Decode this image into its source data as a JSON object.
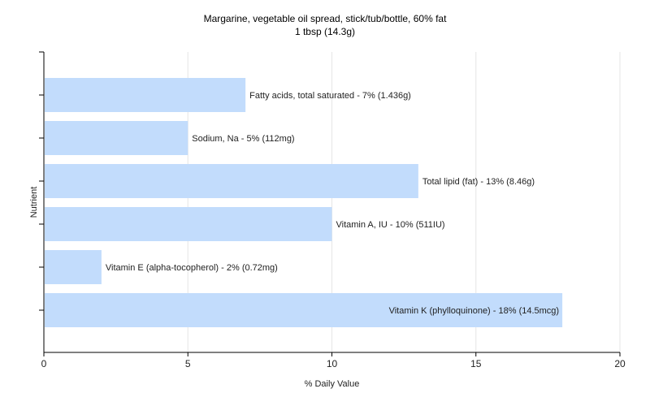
{
  "chart_data": {
    "type": "bar",
    "orientation": "horizontal",
    "title": "Margarine, vegetable oil spread, stick/tub/bottle, 60% fat",
    "subtitle": "1 tbsp (14.3g)",
    "xlabel": "% Daily Value",
    "ylabel": "Nutrient",
    "xlim": [
      0,
      20
    ],
    "xticks": [
      0,
      5,
      10,
      15,
      20
    ],
    "grid": true,
    "legend": "none",
    "bar_color": "#c2dcfc",
    "categories": [
      "Fatty acids, total saturated",
      "Sodium, Na",
      "Total lipid (fat)",
      "Vitamin A, IU",
      "Vitamin E (alpha-tocopherol)",
      "Vitamin K (phylloquinone)"
    ],
    "values": [
      7,
      5,
      13,
      10,
      2,
      18
    ],
    "data_labels": [
      "Fatty acids, total saturated - 7% (1.436g)",
      "Sodium, Na - 5% (112mg)",
      "Total lipid (fat) - 13% (8.46g)",
      "Vitamin A, IU - 10% (511IU)",
      "Vitamin E (alpha-tocopherol) - 2% (0.72mg)",
      "Vitamin K (phylloquinone) - 18% (14.5mcg)"
    ]
  }
}
